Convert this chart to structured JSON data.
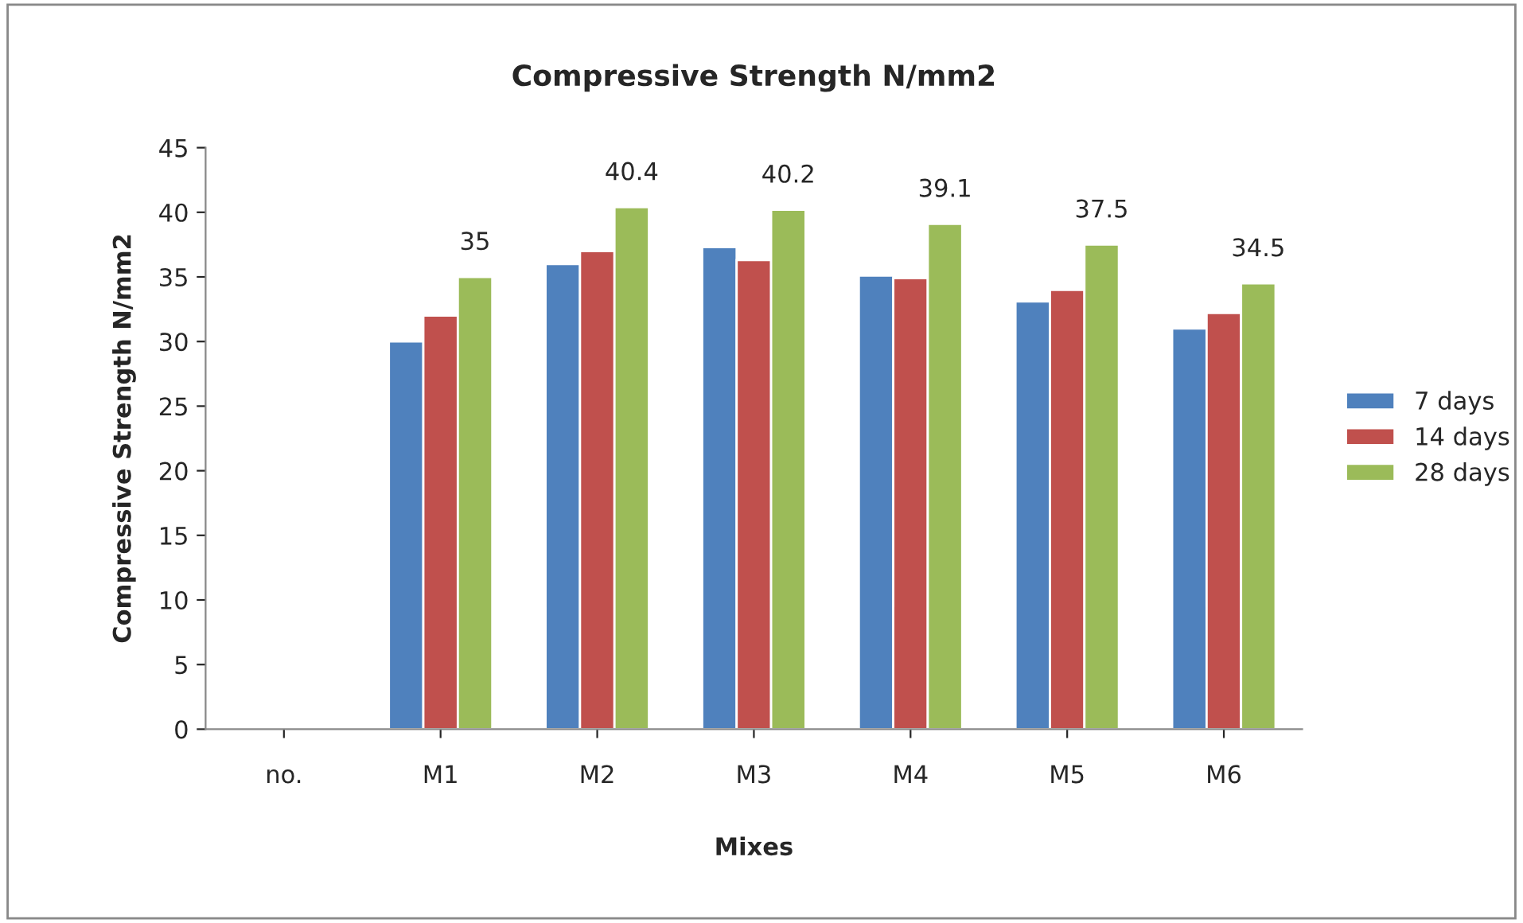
{
  "chart_data": {
    "type": "bar",
    "title": "Compressive Strength N/mm2",
    "xlabel": "Mixes",
    "ylabel": "Compressive Strength N/mm2",
    "categories": [
      "no.",
      "M1",
      "M2",
      "M3",
      "M4",
      "M5",
      "M6"
    ],
    "series": [
      {
        "name": "7 days",
        "color": "#4f81bd",
        "values": [
          null,
          30.0,
          36.0,
          37.3,
          35.1,
          33.1,
          31.0
        ]
      },
      {
        "name": "14 days",
        "color": "#c0504d",
        "values": [
          null,
          32.0,
          37.0,
          36.3,
          34.9,
          34.0,
          32.2
        ]
      },
      {
        "name": "28 days",
        "color": "#9bbb59",
        "values": [
          null,
          35,
          40.4,
          40.2,
          39.1,
          37.5,
          34.5
        ],
        "value_labels": [
          null,
          "35",
          "40.4",
          "40.2",
          "39.1",
          "37.5",
          "34.5"
        ]
      }
    ],
    "ylim": [
      0,
      45
    ],
    "yticks": [
      0,
      5,
      10,
      15,
      20,
      25,
      30,
      35,
      40,
      45
    ],
    "grid": false,
    "legend": "right"
  }
}
